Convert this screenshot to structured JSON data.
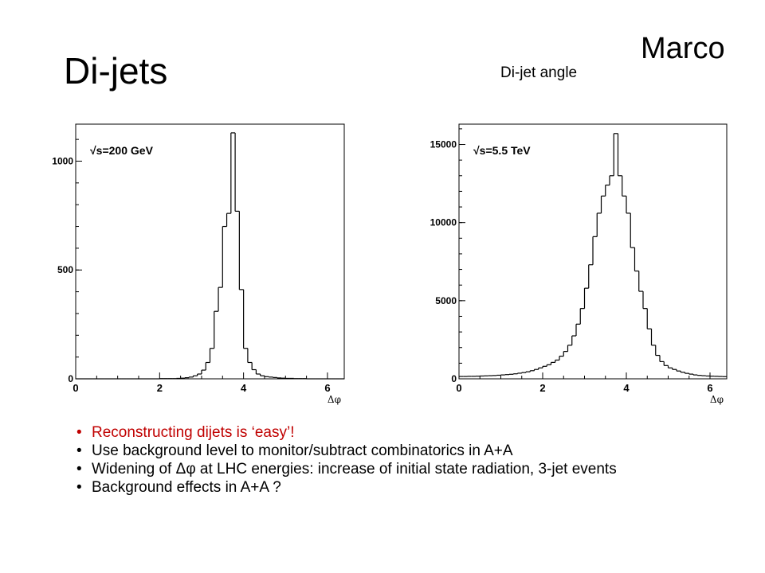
{
  "slide": {
    "title": "Di-jets",
    "author": "Marco",
    "subtitle": "Di-jet angle"
  },
  "chart_data": [
    {
      "type": "bar",
      "annotation": "√s=200 GeV",
      "xlabel": "Δφ",
      "ylabel": "",
      "xlim": [
        0,
        6.4
      ],
      "ylim": [
        0,
        1170
      ],
      "xticks": [
        "0",
        "2",
        "4",
        "6"
      ],
      "yticks": [
        "0",
        "500",
        "1000"
      ],
      "bin_width": 0.1,
      "bin_start": 0,
      "values": [
        0,
        0,
        0,
        0,
        0,
        0,
        0,
        0,
        0,
        0,
        0,
        0,
        0,
        0,
        0,
        0,
        0,
        0,
        0,
        0,
        1,
        1,
        1,
        1,
        2,
        3,
        5,
        8,
        14,
        22,
        40,
        75,
        140,
        310,
        420,
        700,
        760,
        1130,
        770,
        410,
        140,
        75,
        42,
        22,
        14,
        10,
        8,
        6,
        4,
        3,
        2,
        2,
        1,
        1,
        1,
        0,
        0,
        0,
        0,
        0,
        0,
        0,
        0,
        0
      ]
    },
    {
      "type": "bar",
      "annotation": "√s=5.5 TeV",
      "xlabel": "Δφ",
      "ylabel": "",
      "xlim": [
        0,
        6.4
      ],
      "ylim": [
        0,
        16300
      ],
      "xticks": [
        "0",
        "2",
        "4",
        "6"
      ],
      "yticks": [
        "0",
        "5000",
        "10000",
        "15000"
      ],
      "bin_width": 0.1,
      "bin_start": 0,
      "values": [
        150,
        150,
        160,
        160,
        170,
        180,
        190,
        200,
        210,
        230,
        250,
        270,
        290,
        320,
        360,
        400,
        450,
        520,
        600,
        700,
        800,
        900,
        1050,
        1200,
        1450,
        1750,
        2150,
        2750,
        3500,
        4500,
        5800,
        7300,
        9100,
        10600,
        11700,
        12400,
        13000,
        15700,
        13000,
        11700,
        10600,
        8400,
        6900,
        5600,
        4500,
        3200,
        2150,
        1500,
        1100,
        850,
        700,
        600,
        500,
        420,
        350,
        300,
        250,
        220,
        200,
        180,
        170,
        160,
        150,
        140
      ]
    }
  ],
  "bullets": [
    {
      "bullet": "•",
      "text": "Reconstructing dijets is ‘easy’!",
      "color": "#c00000"
    },
    {
      "bullet": "•",
      "text": "Use background level to monitor/subtract combinatorics in A+A",
      "color": "#000000"
    },
    {
      "bullet": "•",
      "text_pre": "Widening of ",
      "symbol": "Δφ",
      "text_post": " at LHC energies: increase of initial state radiation, 3-jet events",
      "color": "#000000"
    },
    {
      "bullet": "•",
      "text": "Background effects in A+A ?",
      "color": "#000000"
    }
  ]
}
